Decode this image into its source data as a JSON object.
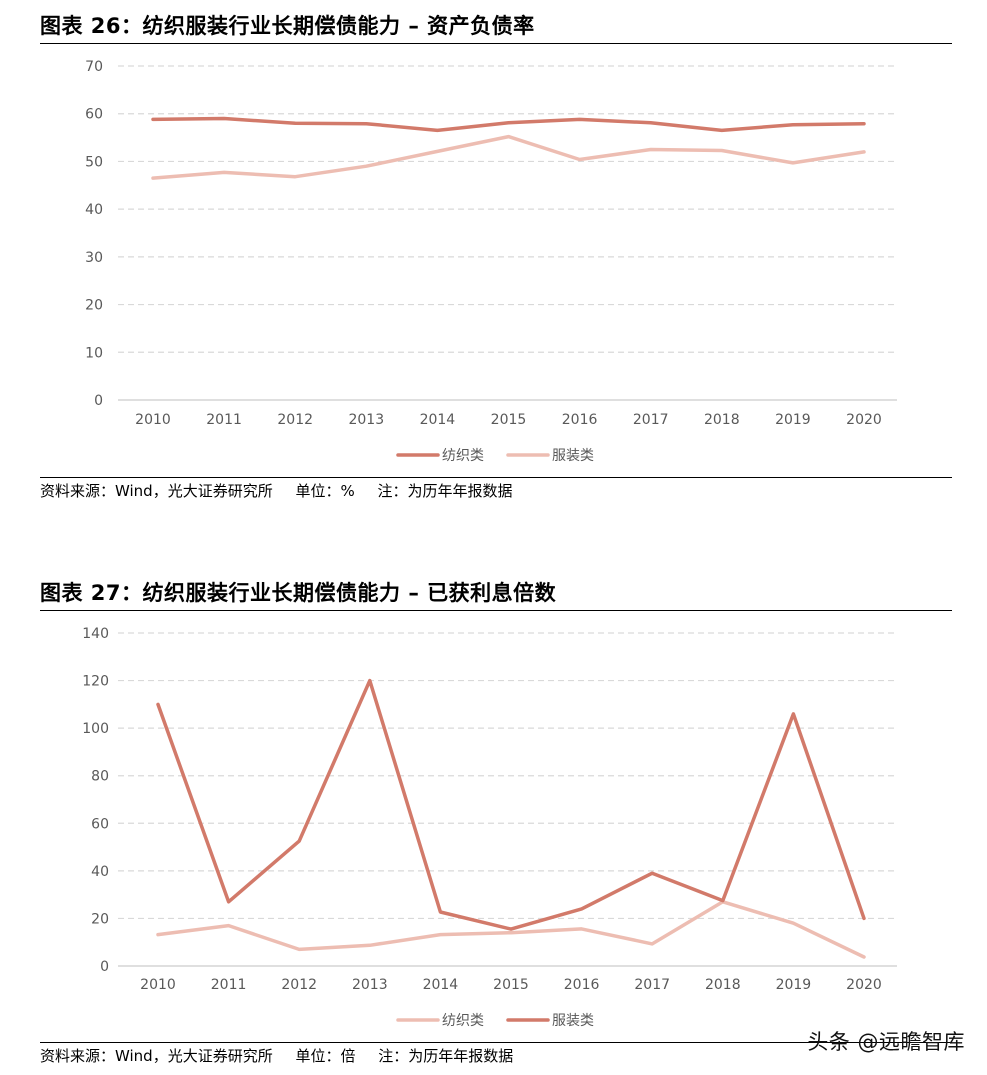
{
  "figures": [
    {
      "title": "图表 26：纺织服装行业长期偿债能力 – 资产负债率",
      "source": "资料来源：Wind，光大证券研究所",
      "unit": "单位：%",
      "note": "注：为历年年报数据"
    },
    {
      "title": "图表 27：纺织服装行业长期偿债能力 – 已获利息倍数",
      "source": "资料来源：Wind，光大证券研究所",
      "unit": "单位：倍",
      "note": "注：为历年年报数据"
    }
  ],
  "watermark": "头条 @远瞻智库",
  "colors": {
    "dark_series": "#D27A6A",
    "light_series": "#EDBDB2",
    "grid": "#D9D9D9",
    "axis": "#BFBFBF"
  },
  "chart_data": [
    {
      "type": "line",
      "categories": [
        "2010",
        "2011",
        "2012",
        "2013",
        "2014",
        "2015",
        "2016",
        "2017",
        "2018",
        "2019",
        "2020"
      ],
      "ylim": [
        0,
        70
      ],
      "yticks": [
        0,
        10,
        20,
        30,
        40,
        50,
        60,
        70
      ],
      "grid": true,
      "legend": "bottom",
      "series": [
        {
          "name": "纺织类",
          "color": "#D27A6A",
          "values": [
            58.8,
            59.0,
            58.0,
            57.9,
            56.5,
            58.1,
            58.8,
            58.1,
            56.5,
            57.7,
            57.9
          ]
        },
        {
          "name": "服装类",
          "color": "#EDBDB2",
          "values": [
            46.5,
            47.7,
            46.8,
            49.0,
            52.1,
            55.2,
            50.4,
            52.5,
            52.3,
            49.7,
            52.0
          ]
        }
      ]
    },
    {
      "type": "line",
      "categories": [
        "2010",
        "2011",
        "2012",
        "2013",
        "2014",
        "2015",
        "2016",
        "2017",
        "2018",
        "2019",
        "2020"
      ],
      "ylim": [
        0,
        140
      ],
      "yticks": [
        0,
        20,
        40,
        60,
        80,
        100,
        120,
        140
      ],
      "grid": true,
      "legend": "bottom",
      "series": [
        {
          "name": "纺织类",
          "color": "#EDBDB2",
          "values": [
            13.2,
            17.0,
            7.0,
            8.7,
            13.2,
            14.0,
            15.6,
            9.3,
            27.0,
            18.0,
            3.8
          ]
        },
        {
          "name": "服装类",
          "color": "#D27A6A",
          "values": [
            110.0,
            27.0,
            52.5,
            120.0,
            22.7,
            15.5,
            24.0,
            39.0,
            27.5,
            106.0,
            20.0
          ]
        }
      ]
    }
  ]
}
